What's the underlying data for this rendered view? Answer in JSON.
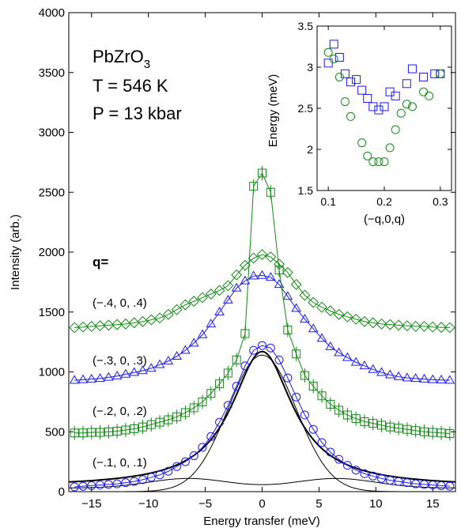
{
  "chart_data": [
    {
      "type": "line",
      "xlabel": "Energy transfer (meV)",
      "ylabel": "Intensity (arb.)",
      "xlim": [
        -17,
        17
      ],
      "ylim": [
        0,
        4000
      ],
      "xticks": [
        -15,
        -10,
        -5,
        0,
        5,
        10,
        15
      ],
      "yticks": [
        0,
        500,
        1000,
        1500,
        2000,
        2500,
        3000,
        3500,
        4000
      ],
      "annotations": {
        "material": "PbZrO",
        "material_subscript": "3",
        "temperature": "T = 546 K",
        "pressure": "P = 13 kbar",
        "q_label": "q="
      },
      "series": [
        {
          "label": "(−.4, 0, .4)",
          "marker": "diamond",
          "color": "#138a13",
          "points": [
            [
              -16.5,
              1370
            ],
            [
              -15.75,
              1375
            ],
            [
              -15,
              1380
            ],
            [
              -14.25,
              1385
            ],
            [
              -13.5,
              1390
            ],
            [
              -12.75,
              1395
            ],
            [
              -12,
              1400
            ],
            [
              -11.25,
              1410
            ],
            [
              -10.5,
              1420
            ],
            [
              -9.75,
              1435
            ],
            [
              -9,
              1450
            ],
            [
              -8.25,
              1480
            ],
            [
              -7.5,
              1520
            ],
            [
              -6.75,
              1560
            ],
            [
              -6,
              1590
            ],
            [
              -5.25,
              1620
            ],
            [
              -4.5,
              1650
            ],
            [
              -3.75,
              1680
            ],
            [
              -3,
              1720
            ],
            [
              -2.25,
              1810
            ],
            [
              -1.5,
              1890
            ],
            [
              -0.75,
              1950
            ],
            [
              0,
              1980
            ],
            [
              0.75,
              1960
            ],
            [
              1.5,
              1900
            ],
            [
              2.25,
              1830
            ],
            [
              3,
              1730
            ],
            [
              3.75,
              1640
            ],
            [
              4.5,
              1580
            ],
            [
              5.25,
              1540
            ],
            [
              6,
              1510
            ],
            [
              6.75,
              1480
            ],
            [
              7.5,
              1460
            ],
            [
              8.25,
              1440
            ],
            [
              9,
              1420
            ],
            [
              9.75,
              1410
            ],
            [
              10.5,
              1400
            ],
            [
              11.25,
              1395
            ],
            [
              12,
              1390
            ],
            [
              12.75,
              1385
            ],
            [
              13.5,
              1380
            ],
            [
              14.25,
              1380
            ],
            [
              15,
              1375
            ],
            [
              15.75,
              1372
            ],
            [
              16.5,
              1370
            ]
          ]
        },
        {
          "label": "(−.3, 0, .3)",
          "marker": "triangle",
          "color": "#1a1aef",
          "points": [
            [
              -16.5,
              930
            ],
            [
              -15.75,
              935
            ],
            [
              -15,
              940
            ],
            [
              -14.25,
              945
            ],
            [
              -13.5,
              955
            ],
            [
              -12.75,
              965
            ],
            [
              -12,
              980
            ],
            [
              -11.25,
              995
            ],
            [
              -10.5,
              1010
            ],
            [
              -9.75,
              1030
            ],
            [
              -9,
              1060
            ],
            [
              -8.25,
              1090
            ],
            [
              -7.5,
              1130
            ],
            [
              -6.75,
              1180
            ],
            [
              -6,
              1240
            ],
            [
              -5.25,
              1310
            ],
            [
              -4.5,
              1400
            ],
            [
              -3.75,
              1500
            ],
            [
              -3,
              1600
            ],
            [
              -2.25,
              1700
            ],
            [
              -1.5,
              1760
            ],
            [
              -0.75,
              1800
            ],
            [
              0,
              1805
            ],
            [
              0.75,
              1790
            ],
            [
              1.5,
              1730
            ],
            [
              2.25,
              1630
            ],
            [
              3,
              1530
            ],
            [
              3.75,
              1440
            ],
            [
              4.5,
              1360
            ],
            [
              5.25,
              1280
            ],
            [
              6,
              1210
            ],
            [
              6.75,
              1160
            ],
            [
              7.5,
              1120
            ],
            [
              8.25,
              1080
            ],
            [
              9,
              1050
            ],
            [
              9.75,
              1020
            ],
            [
              10.5,
              995
            ],
            [
              11.25,
              975
            ],
            [
              12,
              960
            ],
            [
              12.75,
              950
            ],
            [
              13.5,
              945
            ],
            [
              14.25,
              940
            ],
            [
              15,
              935
            ],
            [
              15.75,
              932
            ],
            [
              16.5,
              930
            ]
          ]
        },
        {
          "label": "(−.2, 0, .2)",
          "marker": "square",
          "color": "#138a13",
          "points": [
            [
              -16.5,
              490
            ],
            [
              -15.75,
              490
            ],
            [
              -15,
              495
            ],
            [
              -14.25,
              495
            ],
            [
              -13.5,
              500
            ],
            [
              -12.75,
              505
            ],
            [
              -12,
              515
            ],
            [
              -11.25,
              525
            ],
            [
              -10.5,
              540
            ],
            [
              -9.75,
              560
            ],
            [
              -9,
              580
            ],
            [
              -8.25,
              600
            ],
            [
              -7.5,
              625
            ],
            [
              -6.75,
              660
            ],
            [
              -6,
              700
            ],
            [
              -5.25,
              750
            ],
            [
              -4.5,
              820
            ],
            [
              -3.75,
              900
            ],
            [
              -3,
              990
            ],
            [
              -2.25,
              1100
            ],
            [
              -1.5,
              1320
            ],
            [
              -0.75,
              2550
            ],
            [
              0,
              2660
            ],
            [
              0.75,
              2500
            ],
            [
              1.5,
              1850
            ],
            [
              2.25,
              1350
            ],
            [
              3,
              1150
            ],
            [
              3.75,
              970
            ],
            [
              4.5,
              880
            ],
            [
              5.25,
              800
            ],
            [
              6,
              730
            ],
            [
              6.75,
              680
            ],
            [
              7.5,
              640
            ],
            [
              8.25,
              610
            ],
            [
              9,
              585
            ],
            [
              9.75,
              570
            ],
            [
              10.5,
              555
            ],
            [
              11.25,
              540
            ],
            [
              12,
              530
            ],
            [
              12.75,
              520
            ],
            [
              13.5,
              510
            ],
            [
              14.25,
              500
            ],
            [
              15,
              495
            ],
            [
              15.75,
              490
            ],
            [
              16.5,
              485
            ]
          ]
        },
        {
          "label": "(−.1, 0, .1)",
          "marker": "circle",
          "color": "#1a1aef",
          "points": [
            [
              -16.5,
              40
            ],
            [
              -15.75,
              45
            ],
            [
              -15,
              50
            ],
            [
              -14.25,
              55
            ],
            [
              -13.5,
              60
            ],
            [
              -12.75,
              65
            ],
            [
              -12,
              75
            ],
            [
              -11.25,
              85
            ],
            [
              -10.5,
              100
            ],
            [
              -9.75,
              120
            ],
            [
              -9,
              140
            ],
            [
              -8.25,
              170
            ],
            [
              -7.5,
              210
            ],
            [
              -6.75,
              250
            ],
            [
              -6,
              300
            ],
            [
              -5.25,
              370
            ],
            [
              -4.5,
              460
            ],
            [
              -3.75,
              580
            ],
            [
              -3,
              720
            ],
            [
              -2.25,
              880
            ],
            [
              -1.5,
              1050
            ],
            [
              -0.75,
              1180
            ],
            [
              0,
              1220
            ],
            [
              0.75,
              1200
            ],
            [
              1.5,
              1100
            ],
            [
              2.25,
              950
            ],
            [
              3,
              790
            ],
            [
              3.75,
              640
            ],
            [
              4.5,
              520
            ],
            [
              5.25,
              410
            ],
            [
              6,
              330
            ],
            [
              6.75,
              270
            ],
            [
              7.5,
              220
            ],
            [
              8.25,
              180
            ],
            [
              9,
              150
            ],
            [
              9.75,
              130
            ],
            [
              10.5,
              110
            ],
            [
              11.25,
              95
            ],
            [
              12,
              85
            ],
            [
              12.75,
              75
            ],
            [
              13.5,
              65
            ],
            [
              14.25,
              60
            ],
            [
              15,
              55
            ],
            [
              15.75,
              50
            ],
            [
              16.5,
              45
            ]
          ]
        }
      ],
      "fit_curves": {
        "total_fit": {
          "color": "#000000",
          "center": 0,
          "width": 3.3,
          "amplitude": 1130,
          "base": 40
        },
        "central_component": {
          "color": "#000000",
          "center": 0,
          "width": 3.0,
          "amplitude": 1140
        },
        "side_components": {
          "color": "#000000",
          "centers": [
            -6.5,
            6.5
          ],
          "width": 3.5,
          "amplitude": 80,
          "base": 30
        }
      }
    },
    {
      "type": "scatter",
      "xlabel": "(−q,0,q)",
      "ylabel": "Energy (meV)",
      "xlim": [
        0.08,
        0.32
      ],
      "ylim": [
        1.5,
        3.5
      ],
      "xticks": [
        0.1,
        0.2,
        0.3
      ],
      "xtick_labels": [
        "0.1",
        "0.2",
        "0.3"
      ],
      "yticks": [
        1.5,
        2,
        2.5,
        3,
        3.5
      ],
      "ytick_labels": [
        "1.5",
        "2",
        "2.5",
        "3",
        "3.5"
      ],
      "series": [
        {
          "marker": "square",
          "color": "#1a1aef",
          "points": [
            [
              0.1,
              3.05
            ],
            [
              0.11,
              3.28
            ],
            [
              0.12,
              3.12
            ],
            [
              0.13,
              2.92
            ],
            [
              0.14,
              2.82
            ],
            [
              0.15,
              2.85
            ],
            [
              0.16,
              2.72
            ],
            [
              0.17,
              2.62
            ],
            [
              0.18,
              2.52
            ],
            [
              0.19,
              2.48
            ],
            [
              0.2,
              2.52
            ],
            [
              0.21,
              2.7
            ],
            [
              0.22,
              2.65
            ],
            [
              0.24,
              2.8
            ],
            [
              0.25,
              2.98
            ],
            [
              0.27,
              2.88
            ],
            [
              0.29,
              2.92
            ],
            [
              0.3,
              2.92
            ]
          ]
        },
        {
          "marker": "circle",
          "color": "#138a13",
          "points": [
            [
              0.1,
              3.18
            ],
            [
              0.11,
              3.1
            ],
            [
              0.12,
              2.88
            ],
            [
              0.13,
              2.58
            ],
            [
              0.14,
              2.4
            ],
            [
              0.16,
              2.08
            ],
            [
              0.17,
              1.92
            ],
            [
              0.18,
              1.85
            ],
            [
              0.19,
              1.85
            ],
            [
              0.2,
              1.85
            ],
            [
              0.21,
              2.02
            ],
            [
              0.22,
              2.24
            ],
            [
              0.23,
              2.44
            ],
            [
              0.24,
              2.55
            ],
            [
              0.25,
              2.52
            ],
            [
              0.27,
              2.7
            ],
            [
              0.28,
              2.65
            ],
            [
              0.3,
              2.92
            ]
          ]
        }
      ]
    }
  ]
}
